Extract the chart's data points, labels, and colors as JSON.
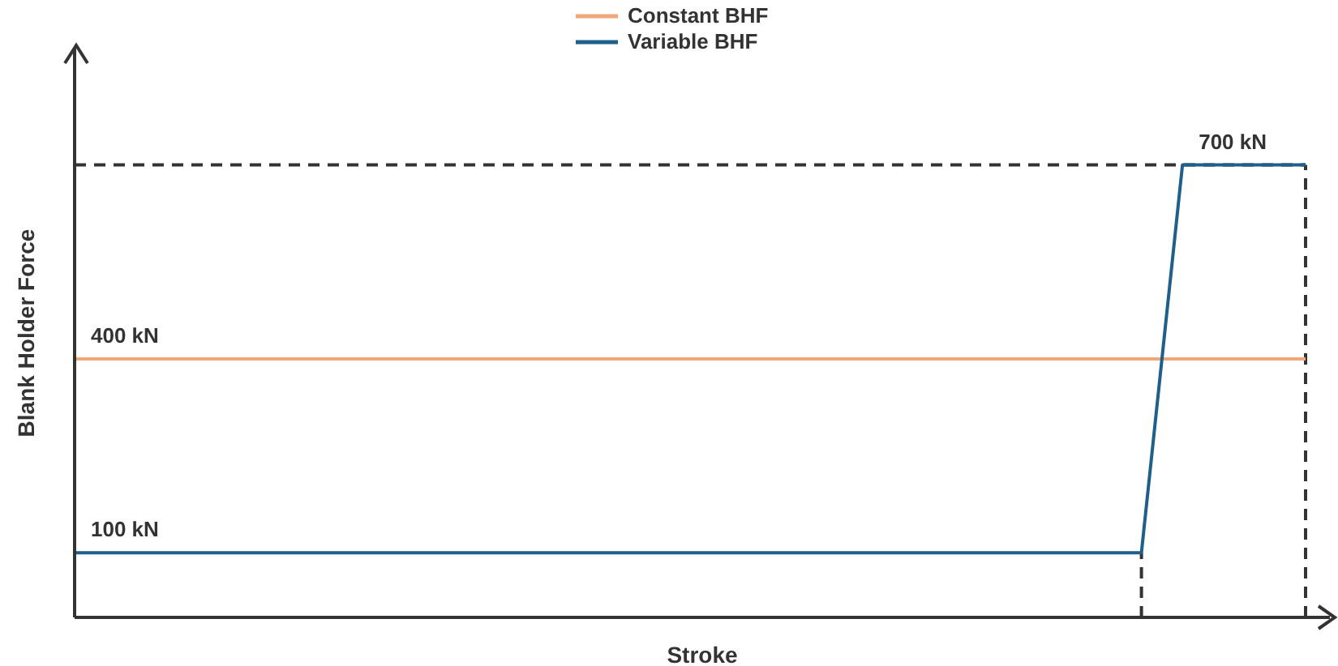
{
  "chart_data": {
    "type": "line",
    "xlabel": "Stroke",
    "ylabel": "Blank Holder Force",
    "categories": [
      null,
      null,
      null,
      null,
      null,
      null,
      null,
      null,
      null,
      null,
      null,
      null,
      null,
      null,
      null,
      null,
      null,
      null,
      null,
      null,
      null,
      null,
      null,
      null,
      null,
      null,
      null,
      null,
      null,
      null,
      null
    ],
    "ylim": [
      0,
      880
    ],
    "legend": "top",
    "marker": "none",
    "line_style": "solid",
    "grid": false,
    "tick_labels": false,
    "series": [
      {
        "name": "Constant BHF",
        "color": "#f0a878",
        "values": [
          400,
          400,
          400,
          400,
          400,
          400,
          400,
          400,
          400,
          400,
          400,
          400,
          400,
          400,
          400,
          400,
          400,
          400,
          400,
          400,
          400,
          400,
          400,
          400,
          400,
          400,
          400,
          400,
          400,
          400,
          400
        ],
        "value_labels": [
          "400 kN",
          null,
          null,
          null,
          null,
          null,
          null,
          null,
          null,
          null,
          null,
          null,
          null,
          null,
          null,
          null,
          null,
          null,
          null,
          null,
          null,
          null,
          null,
          null,
          null,
          null,
          null,
          null,
          null,
          null,
          null
        ]
      },
      {
        "name": "Variable BHF",
        "color": "#1f5f8b",
        "values": [
          100,
          100,
          100,
          100,
          100,
          100,
          100,
          100,
          100,
          100,
          100,
          100,
          100,
          100,
          100,
          100,
          100,
          100,
          100,
          100,
          100,
          100,
          100,
          100,
          100,
          100,
          100,
          700,
          700,
          700,
          700
        ],
        "value_labels": [
          "100 kN",
          null,
          null,
          null,
          null,
          null,
          null,
          null,
          null,
          null,
          null,
          null,
          null,
          null,
          null,
          null,
          null,
          null,
          null,
          null,
          null,
          null,
          null,
          null,
          null,
          null,
          null,
          "700 kN",
          null,
          null,
          null
        ]
      }
    ],
    "ref_lines": [
      {
        "axis": "y",
        "value": 700,
        "line_style": "dashed",
        "color": "#333333"
      }
    ]
  }
}
